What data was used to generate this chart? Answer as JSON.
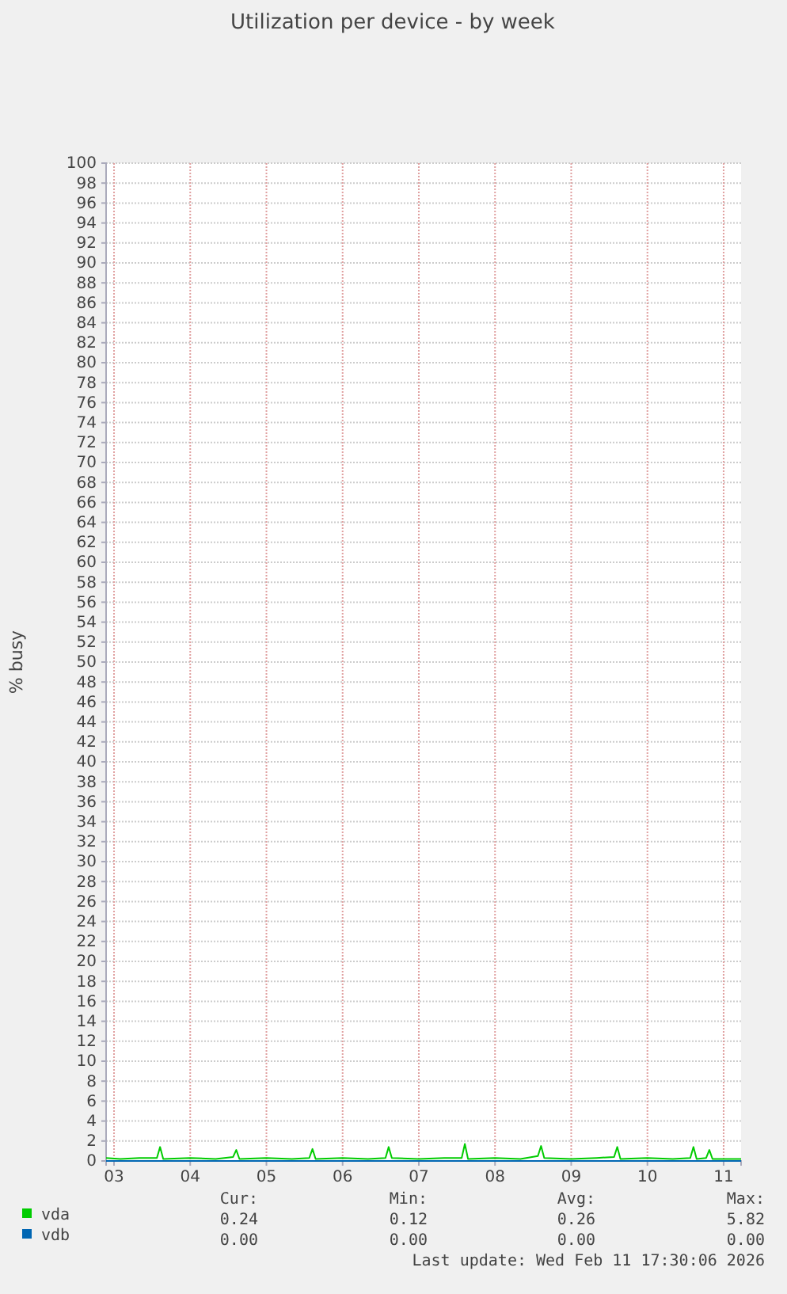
{
  "chart_data": {
    "type": "line",
    "title": "Utilization per device - by week",
    "ylabel": "% busy",
    "xlim": [
      "2026-02-03T09:30",
      "2026-02-11T17:30"
    ],
    "xticks": [
      {
        "value": "2026-02-03T12:00",
        "label": "03"
      },
      {
        "value": "2026-02-04T12:00",
        "label": "04"
      },
      {
        "value": "2026-02-05T12:00",
        "label": "05"
      },
      {
        "value": "2026-02-06T12:00",
        "label": "06"
      },
      {
        "value": "2026-02-07T12:00",
        "label": "07"
      },
      {
        "value": "2026-02-08T12:00",
        "label": "08"
      },
      {
        "value": "2026-02-09T12:00",
        "label": "09"
      },
      {
        "value": "2026-02-10T12:00",
        "label": "10"
      },
      {
        "value": "2026-02-11T12:00",
        "label": "11"
      }
    ],
    "ylim": [
      0,
      100
    ],
    "yticks": [
      0,
      2,
      4,
      6,
      8,
      10,
      12,
      14,
      16,
      18,
      20,
      22,
      24,
      26,
      28,
      30,
      32,
      34,
      36,
      38,
      40,
      42,
      44,
      46,
      48,
      50,
      52,
      54,
      56,
      58,
      60,
      62,
      64,
      66,
      68,
      70,
      72,
      74,
      76,
      78,
      80,
      82,
      84,
      86,
      88,
      90,
      92,
      94,
      96,
      98,
      100
    ],
    "grid": true,
    "legend": "bottom",
    "series": [
      {
        "name": "vda",
        "color": "#00cc00",
        "x": [
          "2026-02-03T09:30",
          "2026-02-03T14:00",
          "2026-02-03T20:00",
          "2026-02-04T01:30",
          "2026-02-04T02:30",
          "2026-02-04T03:30",
          "2026-02-04T12:00",
          "2026-02-04T20:00",
          "2026-02-05T01:30",
          "2026-02-05T02:30",
          "2026-02-05T03:30",
          "2026-02-05T12:00",
          "2026-02-05T20:00",
          "2026-02-06T01:30",
          "2026-02-06T02:30",
          "2026-02-06T03:30",
          "2026-02-06T12:00",
          "2026-02-06T20:00",
          "2026-02-07T01:30",
          "2026-02-07T02:30",
          "2026-02-07T03:30",
          "2026-02-07T12:00",
          "2026-02-07T20:00",
          "2026-02-08T01:30",
          "2026-02-08T02:30",
          "2026-02-08T03:30",
          "2026-02-08T12:00",
          "2026-02-08T20:00",
          "2026-02-09T01:30",
          "2026-02-09T02:30",
          "2026-02-09T03:30",
          "2026-02-09T12:00",
          "2026-02-09T20:00",
          "2026-02-10T01:30",
          "2026-02-10T02:30",
          "2026-02-10T03:30",
          "2026-02-10T12:00",
          "2026-02-10T20:00",
          "2026-02-11T01:30",
          "2026-02-11T02:30",
          "2026-02-11T03:30",
          "2026-02-11T06:30",
          "2026-02-11T07:30",
          "2026-02-11T08:30",
          "2026-02-11T17:30"
        ],
        "values": [
          0.3,
          0.2,
          0.3,
          0.3,
          1.4,
          0.2,
          0.3,
          0.2,
          0.4,
          1.1,
          0.2,
          0.3,
          0.2,
          0.3,
          1.2,
          0.2,
          0.3,
          0.2,
          0.3,
          1.4,
          0.3,
          0.2,
          0.3,
          0.3,
          1.7,
          0.2,
          0.3,
          0.2,
          0.5,
          1.5,
          0.3,
          0.2,
          0.3,
          0.4,
          1.4,
          0.2,
          0.3,
          0.2,
          0.3,
          1.4,
          0.2,
          0.3,
          1.1,
          0.2,
          0.2
        ]
      },
      {
        "name": "vdb",
        "color": "#0066b3",
        "x": [
          "2026-02-03T09:30",
          "2026-02-11T17:30"
        ],
        "values": [
          0,
          0
        ]
      }
    ],
    "annotations": [
      "Cur:",
      "Min:",
      "Avg:",
      "Max:",
      "0.24",
      "0.12",
      "0.26",
      "5.82",
      "0.00",
      "0.00",
      "0.00",
      "0.00",
      "Last update: Wed Feb 11 17:30:06 2026"
    ]
  }
}
